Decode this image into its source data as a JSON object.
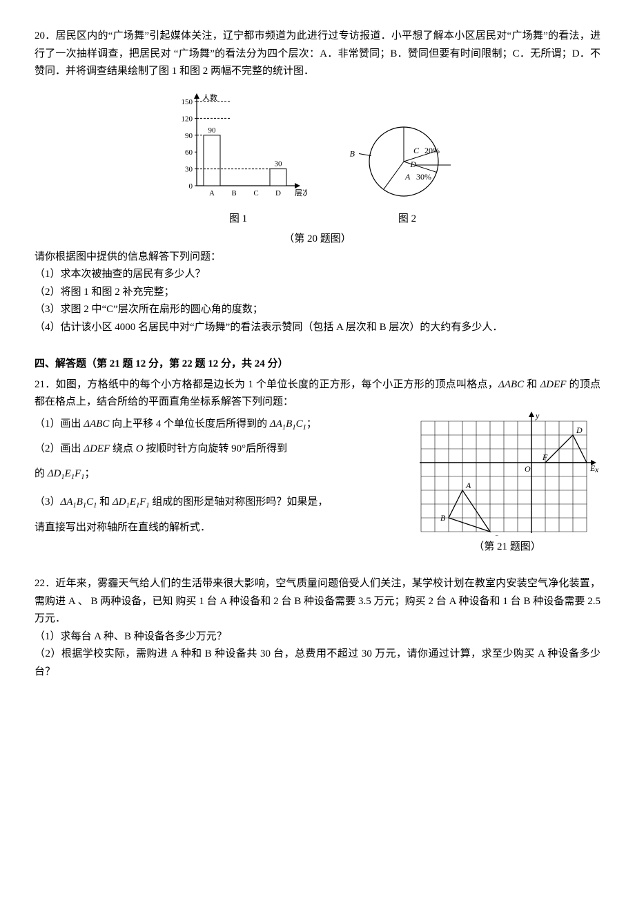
{
  "q20": {
    "num": "20．",
    "text": "居民区内的“广场舞”引起媒体关注，辽宁都市频道为此进行过专访报道．小平想了解本小区居民对“广场舞”的看法，进行了一次抽样调查，把居民对 “广场舞”的看法分为四个层次：A．非常赞同；B．赞同但要有时间限制；C．无所谓；D．不赞同．并将调查结果绘制了图 1 和图 2 两幅不完整的统计图．",
    "fig1_caption": "图 1",
    "fig2_caption": "图 2",
    "overall_caption": "（第 20 题图）",
    "prompt": "请你根据图中提供的信息解答下列问题：",
    "sub1": "（1）求本次被抽查的居民有多少人？",
    "sub2": "（2）将图 1 和图 2 补充完整；",
    "sub3": "（3）求图 2 中“C”层次所在扇形的圆心角的度数；",
    "sub4": "（4）估计该小区 4000 名居民中对“广场舞”的看法表示赞同（包括 A 层次和 B 层次）的大约有多少人．",
    "bar_chart": {
      "type": "bar",
      "y_axis_label": "人数",
      "x_axis_label": "层次",
      "y_ticks": [
        0,
        30,
        60,
        90,
        120,
        150
      ],
      "categories": [
        "A",
        "B",
        "C",
        "D"
      ],
      "values": [
        90,
        null,
        null,
        30
      ],
      "value_labels": {
        "A": "90",
        "D": "30"
      },
      "axis_color": "#000000",
      "dash_color": "#000000",
      "bar_fill": "#ffffff",
      "bar_stroke": "#000000",
      "font_size": 11
    },
    "pie_chart": {
      "type": "pie",
      "stroke": "#000000",
      "fill": "#ffffff",
      "font_size": 12,
      "slices": [
        {
          "label": "C",
          "pct_label": "20%",
          "frac": 0.2,
          "start_deg": -90
        },
        {
          "label": "D",
          "pct_label": "",
          "frac": 0.1,
          "start_deg": -18
        },
        {
          "label": "A",
          "pct_label": "30%",
          "frac": 0.3,
          "start_deg": 18
        },
        {
          "label": "B",
          "pct_label": "",
          "frac": 0.4,
          "start_deg": 126
        }
      ]
    }
  },
  "section4": {
    "header": "四、解答题（第 21 题 12 分，第 22 题 12 分，共 24 分）"
  },
  "q21": {
    "num": "21．",
    "intro_a": "如图，方格纸中的每个小方格都是边长为 1 个单位长度的正方形，每个小正方形的顶点叫格点，",
    "intro_b": " 的顶点都在格点上，结合所给的平面直角坐标系解答下列问题：",
    "sub1_a": "（1）画出 ",
    "sub1_b": " 向上平移 4 个单位长度后所得到的 ",
    "sub1_c": "；",
    "sub2_a": "（2）画出 ",
    "sub2_b": " 绕点 ",
    "sub2_c": " 按顺时针方向旋转 90°后所得到",
    "sub2_d": "的 ",
    "sub2_e": "；",
    "sub3_a": "（3）",
    "sub3_mid": " 和 ",
    "sub3_b": " 组成的图形是轴对称图形吗？如果是，",
    "sub3_c": "请直接写出对称轴所在直线的解析式．",
    "caption": "（第 21 题图）",
    "grid": {
      "type": "grid",
      "cell": 20,
      "cols": 12,
      "rows": 8,
      "origin_col": 8,
      "origin_row": 3,
      "grid_color": "#000000",
      "axis_color": "#000000",
      "font_size": 12,
      "labels": {
        "y": "y",
        "x": "x",
        "O": "O"
      },
      "triangles": {
        "ABC": {
          "pts": [
            [
              -5,
              -2
            ],
            [
              -6,
              -4
            ],
            [
              -3,
              -5
            ]
          ],
          "labels": [
            "A",
            "B",
            "C"
          ]
        },
        "DEF": {
          "pts": [
            [
              3,
              2
            ],
            [
              4,
              0
            ],
            [
              1,
              0
            ]
          ],
          "labels": [
            "D",
            "E",
            "F"
          ]
        }
      }
    }
  },
  "q22": {
    "num": "22．",
    "text": "近年来，雾霾天气给人们的生活带来很大影响，空气质量问题倍受人们关注，某学校计划在教室内安装空气净化装置，需购进 A 、 B 两种设备，已知 购买 1 台 A 种设备和 2 台 B 种设备需要 3.5 万元；购买 2 台 A 种设备和 1 台 B 种设备需要 2.5 万元．",
    "sub1": "（1）求每台 A 种、B 种设备各多少万元？",
    "sub2": "（2）根据学校实际，需购进 A 种和 B 种设备共 30 台，总费用不超过 30 万元，请你通过计算，求至少购买 A 种设备多少台？"
  }
}
